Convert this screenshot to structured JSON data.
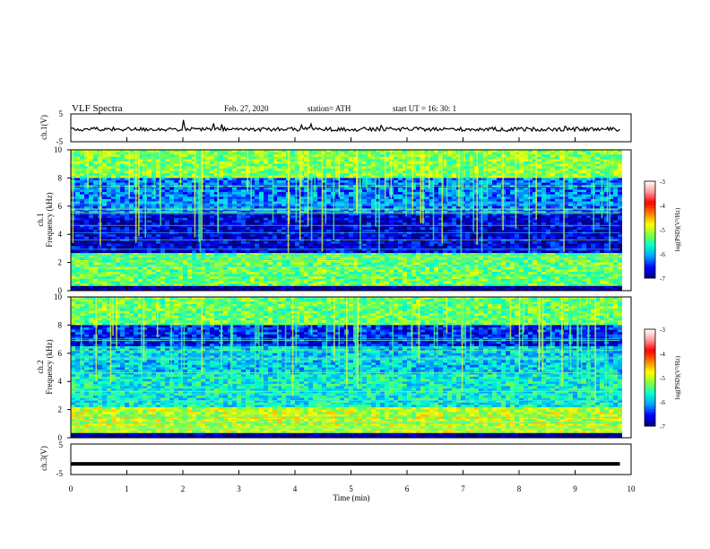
{
  "header": {
    "title": "VLF Spectra",
    "date": "Feb. 27, 2020",
    "station": "station= ATH",
    "start": "start UT = 16: 30: 1"
  },
  "colors": {
    "ink": "#000000",
    "colormap": [
      "#00007a",
      "#0000ff",
      "#00a0ff",
      "#00ffd0",
      "#80ff40",
      "#ffff00",
      "#ff8000",
      "#ff0000",
      "#ff9a9a",
      "#ffffff"
    ]
  },
  "chart_data": [
    {
      "type": "line",
      "id": "ch1-voltage",
      "ylabel": "ch.1(V)",
      "ylim": [
        -5,
        5
      ],
      "yticks": [
        "5",
        "-5"
      ],
      "x_range_min": [
        0,
        9.8
      ],
      "y_level_approx": -0.5,
      "note_values": "noisy trace hovering just below 0 V with short spikes"
    },
    {
      "type": "heatmap",
      "id": "ch1-spectrogram",
      "channel_label": "ch.1",
      "ylabel": "Frequency (kHz)",
      "ylim": [
        0,
        10
      ],
      "yticks": [
        "0",
        "2",
        "4",
        "6",
        "8",
        "10"
      ],
      "colorbar": {
        "label": "log(PSD)(V²/Hz)",
        "range": [
          -7,
          -3
        ],
        "ticks": [
          "-3",
          "-4",
          "-5",
          "-6",
          "-7"
        ]
      },
      "bands_khz": [
        {
          "from": 0,
          "to": 0.4,
          "level": -7
        },
        {
          "from": 0.4,
          "to": 2.6,
          "level": -5.3
        },
        {
          "from": 2.6,
          "to": 5.5,
          "level": -6.7
        },
        {
          "from": 5.5,
          "to": 8.0,
          "level": -6.2
        },
        {
          "from": 8.0,
          "to": 10,
          "level": -5.2
        }
      ]
    },
    {
      "type": "heatmap",
      "id": "ch2-spectrogram",
      "channel_label": "ch.2",
      "ylabel": "Frequency (kHz)",
      "ylim": [
        0,
        10
      ],
      "yticks": [
        "0",
        "2",
        "4",
        "6",
        "8",
        "10"
      ],
      "colorbar": {
        "label": "log(PSD)(V²/Hz)",
        "range": [
          -7,
          -3
        ],
        "ticks": [
          "-3",
          "-4",
          "-5",
          "-6",
          "-7"
        ]
      },
      "bands_khz": [
        {
          "from": 0,
          "to": 0.4,
          "level": -7
        },
        {
          "from": 0.4,
          "to": 2.2,
          "level": -5.0
        },
        {
          "from": 2.2,
          "to": 4.5,
          "level": -5.7
        },
        {
          "from": 4.5,
          "to": 6.5,
          "level": -5.9
        },
        {
          "from": 6.5,
          "to": 8.0,
          "level": -6.5
        },
        {
          "from": 8.0,
          "to": 10,
          "level": -5.3
        }
      ]
    },
    {
      "type": "line",
      "id": "ch3-voltage",
      "ylabel": "ch.3(V)",
      "ylim": [
        -5,
        5
      ],
      "yticks": [
        "5",
        "-5"
      ],
      "x_range_min": [
        0,
        9.8
      ],
      "y_level_approx": -1.5,
      "note_values": "flat thick trace"
    }
  ],
  "xaxis": {
    "label": "Time (min)",
    "xlim": [
      0,
      10
    ],
    "ticks": [
      "0",
      "1",
      "2",
      "3",
      "4",
      "5",
      "6",
      "7",
      "8",
      "9",
      "10"
    ]
  }
}
